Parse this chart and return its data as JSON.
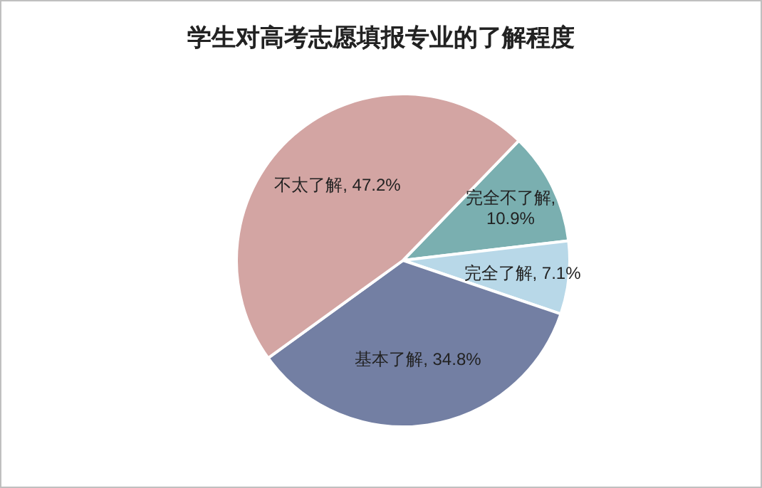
{
  "chart_data": {
    "type": "pie",
    "title": "学生对高考志愿填报专业的了解程度",
    "categories": [
      "完全不了解",
      "完全了解",
      "基本了解",
      "不太了解"
    ],
    "values": [
      10.9,
      7.1,
      34.8,
      47.2
    ],
    "colors": [
      "#7aafb0",
      "#b8d8e8",
      "#737fa3",
      "#d3a5a3"
    ],
    "value_labels": [
      ", 10.9%",
      ", 7.1%",
      ", 34.8%",
      ", 47.2%"
    ]
  }
}
